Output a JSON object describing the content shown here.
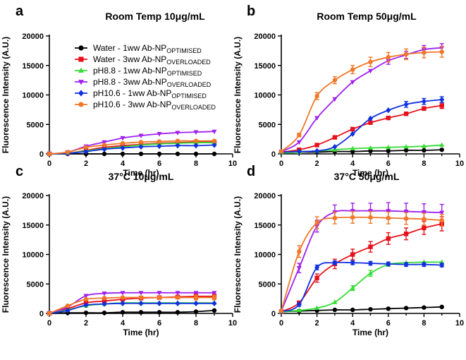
{
  "colors": {
    "water_1ww": "#000000",
    "water_3ww": "#e8101a",
    "ph88_1ww": "#33dd33",
    "ph88_3ww": "#a020f0",
    "ph106_1ww": "#1030e0",
    "ph106_3ww": "#f07828"
  },
  "legend": [
    {
      "key": "water_1ww",
      "text": "Water - 1ww Ab-NP",
      "sub": "OPTIMISED",
      "marker": "circle"
    },
    {
      "key": "water_3ww",
      "text": "Water - 3ww Ab-NP",
      "sub": "OVERLOADED",
      "marker": "square"
    },
    {
      "key": "ph88_1ww",
      "text": "pH8.8 - 1ww Ab-NP",
      "sub": "OPTIMISED",
      "marker": "triangle-up"
    },
    {
      "key": "ph88_3ww",
      "text": "pH8.8 - 3ww Ab-NP",
      "sub": "OVERLOADED",
      "marker": "triangle-down"
    },
    {
      "key": "ph106_1ww",
      "text": "pH10.6 - 1ww  Ab-NP",
      "sub": "OPTIMISED",
      "marker": "diamond"
    },
    {
      "key": "ph106_3ww",
      "text": "pH10.6 - 3ww Ab-NP",
      "sub": "OVERLOADED",
      "marker": "circle"
    }
  ],
  "chart_data": [
    {
      "type": "line",
      "panel": "a",
      "title": "Room Temp 10μg/mL",
      "xlabel": "Time (hr)",
      "ylabel": "Fluorescence Intensity (A.U.)",
      "xlim": [
        0,
        10
      ],
      "ylim": [
        0,
        20000
      ],
      "xticks": [
        0,
        2,
        4,
        6,
        8,
        10
      ],
      "yticks": [
        0,
        5000,
        10000,
        15000,
        20000
      ],
      "x": [
        0,
        1,
        2,
        3,
        4,
        5,
        6,
        7,
        8,
        9
      ],
      "series": [
        {
          "key": "water_1ww",
          "values": [
            0,
            0,
            0,
            0,
            0,
            0,
            0,
            0,
            0,
            0
          ],
          "errors": [
            0,
            0,
            0,
            0,
            0,
            0,
            0,
            0,
            0,
            0
          ]
        },
        {
          "key": "water_3ww",
          "values": [
            0,
            100,
            600,
            1100,
            1400,
            1600,
            1800,
            1900,
            2000,
            2000
          ],
          "errors": [
            0,
            0,
            0,
            0,
            0,
            0,
            0,
            0,
            0,
            0
          ]
        },
        {
          "key": "ph88_1ww",
          "values": [
            0,
            100,
            500,
            900,
            1200,
            1500,
            1700,
            1800,
            1900,
            1900
          ],
          "errors": [
            0,
            0,
            0,
            0,
            0,
            0,
            0,
            0,
            0,
            0
          ]
        },
        {
          "key": "ph88_3ww",
          "values": [
            0,
            300,
            1300,
            2000,
            2700,
            3100,
            3400,
            3600,
            3700,
            3800
          ],
          "errors": [
            0,
            0,
            0,
            0,
            0,
            0,
            0,
            0,
            0,
            0
          ]
        },
        {
          "key": "ph106_1ww",
          "values": [
            0,
            100,
            400,
            800,
            1000,
            1200,
            1300,
            1400,
            1400,
            1500
          ],
          "errors": [
            0,
            0,
            0,
            0,
            0,
            0,
            0,
            0,
            0,
            0
          ]
        },
        {
          "key": "ph106_3ww",
          "values": [
            0,
            300,
            1100,
            1500,
            1800,
            2000,
            2100,
            2200,
            2200,
            2200
          ],
          "errors": [
            0,
            0,
            0,
            0,
            0,
            0,
            0,
            0,
            0,
            0
          ]
        }
      ]
    },
    {
      "type": "line",
      "panel": "b",
      "title": "Room Temp 50μg/mL",
      "xlabel": "Time (hr)",
      "ylabel": "Fluorescence Intensity (A.U.)",
      "xlim": [
        0,
        10
      ],
      "ylim": [
        0,
        20000
      ],
      "xticks": [
        0,
        2,
        4,
        6,
        8,
        10
      ],
      "yticks": [
        0,
        5000,
        10000,
        15000,
        20000
      ],
      "x": [
        0,
        1,
        2,
        3,
        4,
        5,
        6,
        7,
        8,
        9
      ],
      "series": [
        {
          "key": "water_1ww",
          "values": [
            200,
            300,
            300,
            400,
            400,
            500,
            500,
            600,
            600,
            700
          ],
          "errors": [
            0,
            0,
            0,
            0,
            0,
            0,
            0,
            0,
            0,
            0
          ]
        },
        {
          "key": "water_3ww",
          "values": [
            300,
            700,
            1500,
            2800,
            4200,
            5300,
            6100,
            6800,
            7700,
            8200
          ],
          "errors": [
            0,
            0,
            0,
            0,
            0,
            0,
            0,
            0,
            300,
            500
          ]
        },
        {
          "key": "ph88_1ww",
          "values": [
            200,
            300,
            500,
            700,
            900,
            1000,
            1100,
            1200,
            1300,
            1500
          ],
          "errors": [
            0,
            0,
            0,
            0,
            0,
            0,
            0,
            0,
            0,
            0
          ]
        },
        {
          "key": "ph88_3ww",
          "values": [
            400,
            2000,
            6100,
            9300,
            12200,
            14100,
            15800,
            16800,
            17700,
            18000
          ],
          "errors": [
            0,
            0,
            0,
            0,
            0,
            0,
            600,
            600,
            700,
            700
          ]
        },
        {
          "key": "ph106_1ww",
          "values": [
            300,
            400,
            500,
            1200,
            3400,
            6000,
            7400,
            8400,
            8900,
            9200
          ],
          "errors": [
            0,
            0,
            0,
            0,
            0,
            0,
            0,
            500,
            500,
            500
          ]
        },
        {
          "key": "ph106_3ww",
          "values": [
            400,
            3200,
            9800,
            12500,
            14300,
            15600,
            16400,
            16900,
            17200,
            17300
          ],
          "errors": [
            0,
            300,
            600,
            600,
            700,
            800,
            800,
            900,
            900,
            900
          ]
        }
      ]
    },
    {
      "type": "line",
      "panel": "c",
      "title": "37°C 10μg/mL",
      "xlabel": "Time (hr)",
      "ylabel": "Fluorescence Intensity (A.U.)",
      "xlim": [
        0,
        10
      ],
      "ylim": [
        0,
        20000
      ],
      "xticks": [
        0,
        2,
        4,
        6,
        8,
        10
      ],
      "yticks": [
        0,
        5000,
        10000,
        15000,
        20000
      ],
      "x": [
        0,
        1,
        2,
        3,
        4,
        5,
        6,
        7,
        8,
        9
      ],
      "series": [
        {
          "key": "water_1ww",
          "values": [
            0,
            100,
            100,
            100,
            200,
            200,
            200,
            200,
            300,
            500
          ],
          "errors": [
            0,
            0,
            0,
            0,
            0,
            0,
            0,
            0,
            0,
            0
          ]
        },
        {
          "key": "water_3ww",
          "values": [
            0,
            800,
            1800,
            2100,
            2400,
            2600,
            2700,
            2800,
            2900,
            2900
          ],
          "errors": [
            0,
            0,
            0,
            0,
            0,
            0,
            0,
            0,
            400,
            400
          ]
        },
        {
          "key": "ph88_1ww",
          "values": [
            0,
            600,
            1300,
            1600,
            1800,
            1800,
            1800,
            1800,
            1800,
            1800
          ],
          "errors": [
            0,
            0,
            0,
            0,
            0,
            0,
            0,
            0,
            0,
            0
          ]
        },
        {
          "key": "ph88_3ww",
          "values": [
            0,
            1100,
            3000,
            3400,
            3500,
            3500,
            3500,
            3500,
            3500,
            3500
          ],
          "errors": [
            0,
            0,
            0,
            0,
            0,
            0,
            0,
            0,
            0,
            0
          ]
        },
        {
          "key": "ph106_1ww",
          "values": [
            0,
            500,
            1400,
            1600,
            1700,
            1700,
            1700,
            1700,
            1700,
            1700
          ],
          "errors": [
            0,
            0,
            0,
            0,
            0,
            0,
            0,
            0,
            0,
            0
          ]
        },
        {
          "key": "ph106_3ww",
          "values": [
            0,
            1300,
            2400,
            2600,
            2700,
            2700,
            2700,
            2700,
            2700,
            2700
          ],
          "errors": [
            0,
            0,
            0,
            0,
            0,
            0,
            0,
            0,
            400,
            400
          ]
        }
      ]
    },
    {
      "type": "line",
      "panel": "d",
      "title": "37°C 50μg/mL",
      "xlabel": "Time (hr)",
      "ylabel": "Fluorescence Intensity (A.U.)",
      "xlim": [
        0,
        10
      ],
      "ylim": [
        0,
        20000
      ],
      "xticks": [
        0,
        2,
        4,
        6,
        8,
        10
      ],
      "yticks": [
        0,
        5000,
        10000,
        15000,
        20000
      ],
      "x": [
        0,
        1,
        2,
        3,
        4,
        5,
        6,
        7,
        8,
        9
      ],
      "series": [
        {
          "key": "water_1ww",
          "values": [
            300,
            400,
            500,
            600,
            600,
            700,
            800,
            900,
            1000,
            1100
          ],
          "errors": [
            0,
            0,
            0,
            0,
            0,
            0,
            0,
            0,
            0,
            0
          ]
        },
        {
          "key": "water_3ww",
          "values": [
            300,
            1800,
            6000,
            8400,
            10000,
            11300,
            12700,
            13500,
            14500,
            15200
          ],
          "errors": [
            0,
            300,
            700,
            800,
            900,
            900,
            1000,
            1000,
            1100,
            1200
          ]
        },
        {
          "key": "ph88_1ww",
          "values": [
            300,
            500,
            900,
            1900,
            4300,
            6800,
            8300,
            8600,
            8700,
            8700
          ],
          "errors": [
            0,
            0,
            0,
            0,
            400,
            500,
            300,
            0,
            0,
            0
          ]
        },
        {
          "key": "ph88_3ww",
          "values": [
            400,
            7700,
            14800,
            17200,
            17400,
            17400,
            17400,
            17300,
            17200,
            17100
          ],
          "errors": [
            0,
            800,
            1000,
            1200,
            1300,
            1300,
            1400,
            1400,
            1400,
            1400
          ]
        },
        {
          "key": "ph106_1ww",
          "values": [
            300,
            1500,
            7800,
            8600,
            8600,
            8500,
            8400,
            8300,
            8300,
            8200
          ],
          "errors": [
            0,
            300,
            400,
            300,
            300,
            300,
            300,
            300,
            300,
            300
          ]
        },
        {
          "key": "ph106_3ww",
          "values": [
            400,
            10500,
            15400,
            16200,
            16300,
            16300,
            16200,
            16100,
            16000,
            15800
          ],
          "errors": [
            0,
            1000,
            1000,
            1000,
            1000,
            1000,
            1000,
            1000,
            1000,
            1000
          ]
        }
      ]
    }
  ]
}
